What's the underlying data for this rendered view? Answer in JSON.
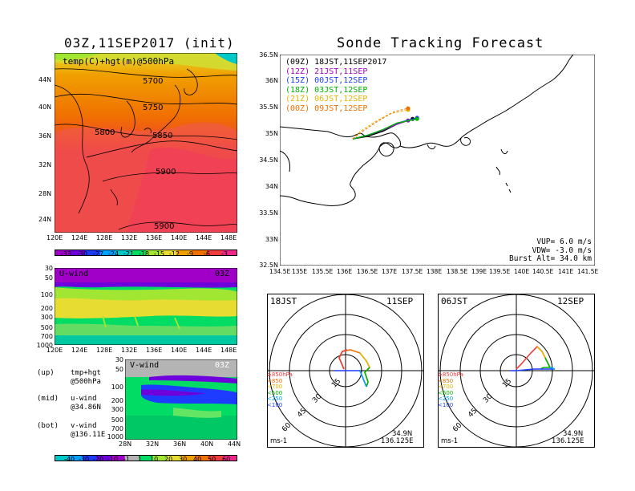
{
  "left_title": "03Z,11SEP2017 (init)",
  "right_title": "Sonde Tracking Forecast",
  "upper_map": {
    "caption": "temp(C)+hgt(m)@500hPa",
    "lat_ticks": [
      "44N",
      "40N",
      "36N",
      "32N",
      "28N",
      "24N"
    ],
    "lon_ticks": [
      "120E",
      "124E",
      "128E",
      "132E",
      "136E",
      "140E",
      "144E",
      "148E"
    ],
    "contours": [
      "5700",
      "5750",
      "5800",
      "5850",
      "5900",
      "5900"
    ],
    "colorbar_ticks": [
      "-33",
      "-30",
      "-27",
      "-24",
      "-21",
      "-18",
      "-15",
      "-12",
      "-9",
      "-6",
      "-3"
    ],
    "colorbar_colors": [
      "#a000c8",
      "#6e00dc",
      "#1e3cff",
      "#00a0ff",
      "#00c8c8",
      "#00dc64",
      "#a0e632",
      "#e6dc32",
      "#f0a000",
      "#f07000",
      "#f03c3c",
      "#f0288c"
    ]
  },
  "u_wind": {
    "label": "U-wind",
    "time": "03Z",
    "p_ticks": [
      "30",
      "50",
      "100",
      "200",
      "300",
      "500",
      "700",
      "1000"
    ],
    "lon_ticks": [
      "120E",
      "124E",
      "128E",
      "132E",
      "136E",
      "140E",
      "144E",
      "148E"
    ]
  },
  "v_wind": {
    "label": "V-wind",
    "time": "03Z",
    "p_ticks": [
      "30",
      "50",
      "100",
      "200",
      "300",
      "500",
      "700",
      "1000"
    ],
    "lat_ticks": [
      "28N",
      "32N",
      "36N",
      "40N",
      "44N"
    ]
  },
  "notes": [
    {
      "tag": "(up)",
      "l1": "tmp+hgt",
      "l2": "@500hPa"
    },
    {
      "tag": "(mid)",
      "l1": "u-wind",
      "l2": "@34.86N"
    },
    {
      "tag": "(bot)",
      "l1": "v-wind",
      "l2": "@136.11E"
    }
  ],
  "wind_colorbar": {
    "ticks": [
      "-40",
      "-30",
      "-20",
      "-10",
      "-1",
      "1",
      "10",
      "20",
      "30",
      "40",
      "50",
      "60"
    ],
    "colors": [
      "#00c8c8",
      "#00a0ff",
      "#1e3cff",
      "#6e00dc",
      "#a000c8",
      "#b4b4b4",
      "#00dc64",
      "#a0e632",
      "#e6dc32",
      "#f0a000",
      "#f07000",
      "#f03c3c",
      "#f0288c"
    ]
  },
  "track_map": {
    "lat_ticks": [
      "36.5N",
      "36N",
      "35.5N",
      "35N",
      "34.5N",
      "34N",
      "33.5N",
      "33N",
      "32.5N"
    ],
    "lon_ticks": [
      "134.5E",
      "135E",
      "135.5E",
      "136E",
      "136.5E",
      "137E",
      "137.5E",
      "138E",
      "138.5E",
      "139E",
      "139.5E",
      "140E",
      "140.5E",
      "141E",
      "141.5E"
    ],
    "legend": [
      {
        "run": "(09Z)",
        "valid": "18JST,11SEP2017",
        "color": "#000000"
      },
      {
        "run": "(12Z)",
        "valid": "21JST,11SEP",
        "color": "#a000c8"
      },
      {
        "run": "(15Z)",
        "valid": "00JST,12SEP",
        "color": "#1e3cff"
      },
      {
        "run": "(18Z)",
        "valid": "03JST,12SEP",
        "color": "#00b400"
      },
      {
        "run": "(21Z)",
        "valid": "06JST,12SEP",
        "color": "#e6b400"
      },
      {
        "run": "(00Z)",
        "valid": "09JST,12SEP",
        "color": "#f07000"
      }
    ],
    "params": [
      "VUP= 6.0 m/s",
      "VDW= -3.0 m/s",
      "Burst Alt= 34.0 km"
    ]
  },
  "hodo_left": {
    "time": "18JST",
    "date": "11SEP",
    "lat": "34.9N",
    "lon": "136.125E",
    "unit": "ms-1",
    "rings": [
      "15",
      "30",
      "45",
      "60"
    ]
  },
  "hodo_right": {
    "time": "06JST",
    "date": "12SEP",
    "lat": "34.9N",
    "lon": "136.125E",
    "unit": "ms-1",
    "rings": [
      "15",
      "30",
      "45",
      "60"
    ]
  },
  "hodo_legend": [
    {
      "label": "≥850hPa",
      "color": "#f03c3c"
    },
    {
      "label": "<850",
      "color": "#f07000"
    },
    {
      "label": "<700",
      "color": "#e6b400"
    },
    {
      "label": "<500",
      "color": "#00b400"
    },
    {
      "label": "<250",
      "color": "#00a0ff"
    },
    {
      "label": "<100",
      "color": "#1e3cff"
    }
  ],
  "chart_data": {
    "type": "line",
    "title": "Sonde Tracking Forecast",
    "xlabel": "",
    "ylabel": "",
    "xlim": [
      134.5,
      141.5
    ],
    "ylim": [
      32.5,
      36.5
    ],
    "series": [
      {
        "name": "(09Z) 18JST,11SEP2017",
        "x": [
          136.12,
          136.45,
          136.8,
          137.1,
          137.45
        ],
        "y": [
          34.9,
          34.95,
          35.05,
          35.18,
          35.28
        ]
      },
      {
        "name": "(12Z) 21JST,11SEP",
        "x": [
          136.12,
          136.45,
          136.8,
          137.1,
          137.35
        ],
        "y": [
          34.9,
          34.97,
          35.07,
          35.18,
          35.25
        ]
      },
      {
        "name": "(15Z) 00JST,12SEP",
        "x": [
          136.12,
          136.45,
          136.8,
          137.1,
          137.55
        ],
        "y": [
          34.9,
          34.97,
          35.08,
          35.2,
          35.3
        ]
      },
      {
        "name": "(18Z) 03JST,12SEP",
        "x": [
          136.12,
          136.45,
          136.8,
          137.1,
          137.55
        ],
        "y": [
          34.9,
          34.97,
          35.08,
          35.2,
          35.28
        ]
      },
      {
        "name": "(21Z) 06JST,12SEP",
        "x": [
          136.12,
          136.3,
          136.6,
          136.95,
          137.35
        ],
        "y": [
          34.9,
          35.05,
          35.22,
          35.38,
          35.45
        ]
      },
      {
        "name": "(00Z) 09JST,12SEP",
        "x": [
          136.12,
          136.35,
          136.7,
          137.05,
          137.35
        ],
        "y": [
          34.9,
          35.05,
          35.25,
          35.42,
          35.48
        ]
      }
    ]
  }
}
